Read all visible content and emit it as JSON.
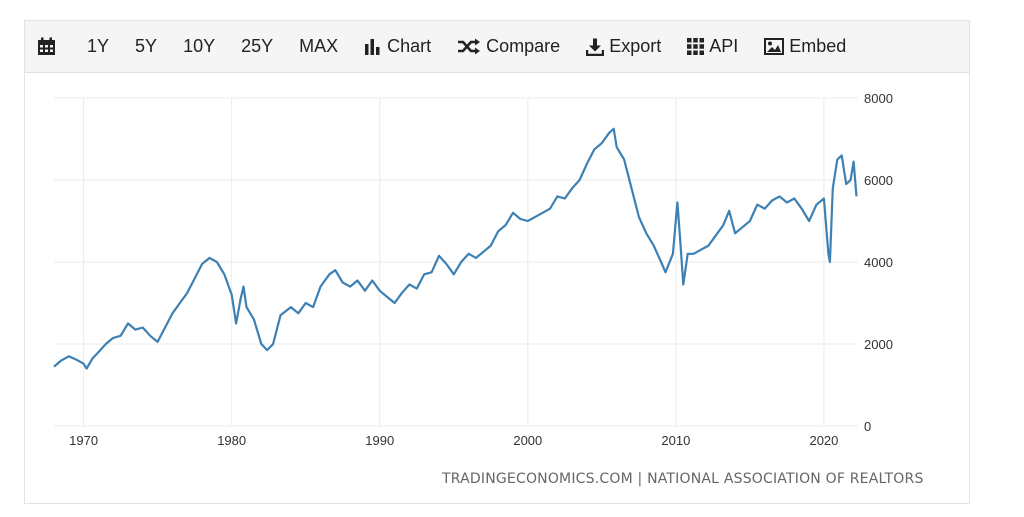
{
  "toolbar": {
    "items": [
      {
        "label": "",
        "icon": "calendar-icon"
      },
      {
        "label": "1Y"
      },
      {
        "label": "5Y"
      },
      {
        "label": "10Y"
      },
      {
        "label": "25Y"
      },
      {
        "label": "MAX"
      },
      {
        "label": "Chart",
        "icon": "bar-chart-icon"
      },
      {
        "label": "Compare",
        "icon": "shuffle-icon"
      },
      {
        "label": "Export",
        "icon": "download-icon"
      },
      {
        "label": "API",
        "icon": "grid-icon"
      },
      {
        "label": "Embed",
        "icon": "image-icon"
      }
    ]
  },
  "source": "TRADINGECONOMICS.COM | NATIONAL ASSOCIATION OF REALTORS",
  "colors": {
    "line": "#3d81b4",
    "grid": "#ebebeb",
    "toolbar_bg": "#f5f5f5"
  },
  "chart_data": {
    "type": "line",
    "title": "",
    "xlabel": "",
    "ylabel": "",
    "xlim": [
      1968,
      2022.3
    ],
    "ylim": [
      0,
      8000
    ],
    "x_ticks": [
      1970,
      1980,
      1990,
      2000,
      2010,
      2020
    ],
    "y_ticks": [
      0,
      2000,
      4000,
      6000,
      8000
    ],
    "y_axis_position": "right",
    "grid": true,
    "series": [
      {
        "points": [
          [
            1968.0,
            1450
          ],
          [
            1968.5,
            1600
          ],
          [
            1969.0,
            1700
          ],
          [
            1969.5,
            1620
          ],
          [
            1970.0,
            1520
          ],
          [
            1970.2,
            1400
          ],
          [
            1970.6,
            1650
          ],
          [
            1971.0,
            1800
          ],
          [
            1971.5,
            2000
          ],
          [
            1972.0,
            2150
          ],
          [
            1972.5,
            2200
          ],
          [
            1973.0,
            2500
          ],
          [
            1973.5,
            2350
          ],
          [
            1974.0,
            2400
          ],
          [
            1974.5,
            2200
          ],
          [
            1975.0,
            2050
          ],
          [
            1975.5,
            2400
          ],
          [
            1976.0,
            2750
          ],
          [
            1976.5,
            3000
          ],
          [
            1977.0,
            3250
          ],
          [
            1977.5,
            3600
          ],
          [
            1978.0,
            3950
          ],
          [
            1978.5,
            4100
          ],
          [
            1979.0,
            4000
          ],
          [
            1979.5,
            3700
          ],
          [
            1980.0,
            3200
          ],
          [
            1980.3,
            2500
          ],
          [
            1980.6,
            3100
          ],
          [
            1980.8,
            3400
          ],
          [
            1981.0,
            2900
          ],
          [
            1981.5,
            2600
          ],
          [
            1982.0,
            2000
          ],
          [
            1982.4,
            1850
          ],
          [
            1982.8,
            2000
          ],
          [
            1983.3,
            2700
          ],
          [
            1984.0,
            2900
          ],
          [
            1984.5,
            2750
          ],
          [
            1985.0,
            3000
          ],
          [
            1985.5,
            2900
          ],
          [
            1986.0,
            3400
          ],
          [
            1986.6,
            3700
          ],
          [
            1987.0,
            3800
          ],
          [
            1987.5,
            3500
          ],
          [
            1988.0,
            3400
          ],
          [
            1988.5,
            3550
          ],
          [
            1989.0,
            3300
          ],
          [
            1989.5,
            3550
          ],
          [
            1990.0,
            3300
          ],
          [
            1990.5,
            3150
          ],
          [
            1991.0,
            3000
          ],
          [
            1991.5,
            3250
          ],
          [
            1992.0,
            3450
          ],
          [
            1992.5,
            3350
          ],
          [
            1993.0,
            3700
          ],
          [
            1993.5,
            3750
          ],
          [
            1994.0,
            4150
          ],
          [
            1994.5,
            3950
          ],
          [
            1995.0,
            3700
          ],
          [
            1995.5,
            4000
          ],
          [
            1996.0,
            4200
          ],
          [
            1996.5,
            4100
          ],
          [
            1997.0,
            4250
          ],
          [
            1997.5,
            4400
          ],
          [
            1998.0,
            4750
          ],
          [
            1998.5,
            4900
          ],
          [
            1999.0,
            5200
          ],
          [
            1999.5,
            5050
          ],
          [
            2000.0,
            5000
          ],
          [
            2000.5,
            5100
          ],
          [
            2001.0,
            5200
          ],
          [
            2001.5,
            5300
          ],
          [
            2002.0,
            5600
          ],
          [
            2002.5,
            5550
          ],
          [
            2003.0,
            5800
          ],
          [
            2003.5,
            6000
          ],
          [
            2004.0,
            6400
          ],
          [
            2004.5,
            6750
          ],
          [
            2005.0,
            6900
          ],
          [
            2005.5,
            7150
          ],
          [
            2005.8,
            7250
          ],
          [
            2006.0,
            6800
          ],
          [
            2006.5,
            6500
          ],
          [
            2007.0,
            5800
          ],
          [
            2007.5,
            5100
          ],
          [
            2008.0,
            4700
          ],
          [
            2008.5,
            4400
          ],
          [
            2009.0,
            4000
          ],
          [
            2009.3,
            3750
          ],
          [
            2009.8,
            4200
          ],
          [
            2010.1,
            5450
          ],
          [
            2010.3,
            4500
          ],
          [
            2010.5,
            3450
          ],
          [
            2010.8,
            4200
          ],
          [
            2011.2,
            4200
          ],
          [
            2011.7,
            4300
          ],
          [
            2012.2,
            4400
          ],
          [
            2012.7,
            4650
          ],
          [
            2013.2,
            4900
          ],
          [
            2013.6,
            5250
          ],
          [
            2014.0,
            4700
          ],
          [
            2014.5,
            4850
          ],
          [
            2015.0,
            5000
          ],
          [
            2015.5,
            5400
          ],
          [
            2016.0,
            5300
          ],
          [
            2016.5,
            5500
          ],
          [
            2017.0,
            5600
          ],
          [
            2017.5,
            5450
          ],
          [
            2018.0,
            5550
          ],
          [
            2018.5,
            5300
          ],
          [
            2019.0,
            5000
          ],
          [
            2019.5,
            5400
          ],
          [
            2020.0,
            5550
          ],
          [
            2020.3,
            4200
          ],
          [
            2020.4,
            4000
          ],
          [
            2020.6,
            5800
          ],
          [
            2020.9,
            6500
          ],
          [
            2021.2,
            6600
          ],
          [
            2021.5,
            5900
          ],
          [
            2021.8,
            6000
          ],
          [
            2022.0,
            6450
          ],
          [
            2022.2,
            5600
          ]
        ]
      }
    ]
  }
}
